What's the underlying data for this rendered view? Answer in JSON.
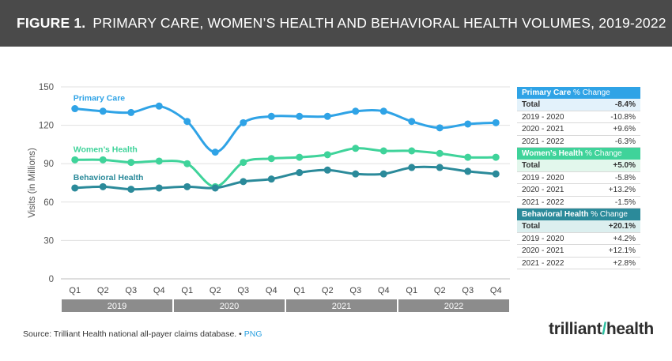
{
  "header": {
    "figure_label": "FIGURE 1.",
    "title": "PRIMARY CARE, WOMEN’S HEALTH AND BEHAVIORAL HEALTH VOLUMES, 2019-2022"
  },
  "colors": {
    "primary_care": "#2fa3e6",
    "womens_health": "#3fd39a",
    "behavioral_health": "#2b8a9a",
    "title_bar": "#4a4a4a",
    "year_band": "#8c8c8c"
  },
  "chart_data": {
    "type": "line",
    "title": "PRIMARY CARE, WOMEN’S HEALTH AND BEHAVIORAL HEALTH VOLUMES, 2019-2022",
    "xlabel": "",
    "ylabel": "Visits (in Millions)",
    "ylim": [
      0,
      150
    ],
    "yticks": [
      0,
      30,
      60,
      90,
      120,
      150
    ],
    "grid": true,
    "categories": [
      "Q1",
      "Q2",
      "Q3",
      "Q4",
      "Q1",
      "Q2",
      "Q3",
      "Q4",
      "Q1",
      "Q2",
      "Q3",
      "Q4",
      "Q1",
      "Q2",
      "Q3",
      "Q4"
    ],
    "years": [
      "2019",
      "2020",
      "2021",
      "2022"
    ],
    "series": [
      {
        "name": "Primary Care",
        "values": [
          133,
          131,
          130,
          135,
          123,
          99,
          122,
          127,
          127,
          127,
          131,
          131,
          123,
          118,
          121,
          122
        ]
      },
      {
        "name": "Women’s Health",
        "values": [
          93,
          93,
          91,
          92,
          90,
          72,
          91,
          94,
          95,
          97,
          102,
          100,
          100,
          98,
          95,
          95
        ]
      },
      {
        "name": "Behavioral Health",
        "values": [
          71,
          72,
          70,
          71,
          72,
          71,
          76,
          78,
          83,
          85,
          82,
          82,
          87,
          87,
          84,
          82
        ]
      }
    ]
  },
  "tables": [
    {
      "name": "Primary Care",
      "suffix": " % Change",
      "color": "#2fa3e6",
      "bg": "#e3f2fb",
      "rows": [
        {
          "label": "Total",
          "value": "-8.4%"
        },
        {
          "label": "2019 - 2020",
          "value": "-10.8%"
        },
        {
          "label": "2020 - 2021",
          "value": "+9.6%"
        },
        {
          "label": "2021 - 2022",
          "value": "-6.3%"
        }
      ]
    },
    {
      "name": "Women’s Health",
      "suffix": " % Change",
      "color": "#3fd39a",
      "bg": "#e2f7ec",
      "rows": [
        {
          "label": "Total",
          "value": "+5.0%"
        },
        {
          "label": "2019 - 2020",
          "value": "-5.8%"
        },
        {
          "label": "2020 - 2021",
          "value": "+13.2%"
        },
        {
          "label": "2021 - 2022",
          "value": "-1.5%"
        }
      ]
    },
    {
      "name": "Behavioral Health",
      "suffix": " % Change",
      "color": "#2b8a9a",
      "bg": "#dcefef",
      "rows": [
        {
          "label": "Total",
          "value": "+20.1%"
        },
        {
          "label": "2019 - 2020",
          "value": "+4.2%"
        },
        {
          "label": "2020 - 2021",
          "value": "+12.1%"
        },
        {
          "label": "2021 - 2022",
          "value": "+2.8%"
        }
      ]
    }
  ],
  "footer": {
    "source": "Source: Trilliant Health national all-payer claims database. •",
    "png_link": "PNG",
    "logo_left": "trilliant",
    "logo_right": "health"
  }
}
